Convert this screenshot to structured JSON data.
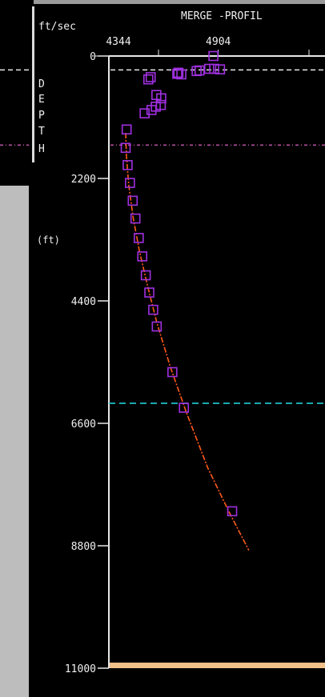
{
  "chart_data": {
    "type": "scatter",
    "title": "MERGE -PROFIL",
    "x_unit": "ft/sec",
    "xlabel_tick_values": [
      4344,
      4904
    ],
    "ylabel_letters": [
      "D",
      "E",
      "P",
      "T",
      "H"
    ],
    "ylabel_unit": "(ft)",
    "y_ticks": [
      0,
      2200,
      4400,
      6600,
      8800,
      11000
    ],
    "y_tick_labels": [
      "0",
      "2200",
      "4400",
      "6600",
      "8800",
      "11000"
    ],
    "xlim": [
      4344,
      5450
    ],
    "ylim": [
      0,
      11000
    ],
    "grid": false,
    "colors": {
      "marker": "#a030e0",
      "curve": "#ff5a1a",
      "line_white": "#e8e8e8",
      "line_pink": "#e060c0",
      "line_cyan": "#20d0d8",
      "floor": "#f2c08a"
    },
    "reference_lines": [
      {
        "depth": 250,
        "color": "white"
      },
      {
        "depth": 1600,
        "color": "pink"
      },
      {
        "depth": 6240,
        "color": "cyan"
      }
    ],
    "floor_depth": 10900,
    "series": [
      {
        "marker": "square",
        "points": [
          {
            "x": 4879,
            "y": 0
          },
          {
            "x": 4857,
            "y": 230
          },
          {
            "x": 4883,
            "y": 230
          },
          {
            "x": 4913,
            "y": 240
          },
          {
            "x": 4808,
            "y": 260
          },
          {
            "x": 4793,
            "y": 270
          },
          {
            "x": 4700,
            "y": 300
          },
          {
            "x": 4715,
            "y": 330
          },
          {
            "x": 4694,
            "y": 320
          },
          {
            "x": 4546,
            "y": 420
          },
          {
            "x": 4558,
            "y": 380
          },
          {
            "x": 4587,
            "y": 700
          },
          {
            "x": 4612,
            "y": 760
          },
          {
            "x": 4610,
            "y": 880
          },
          {
            "x": 4584,
            "y": 910
          },
          {
            "x": 4562,
            "y": 970
          },
          {
            "x": 4527,
            "y": 1030
          },
          {
            "x": 4435,
            "y": 1320
          },
          {
            "x": 4430,
            "y": 1650
          },
          {
            "x": 4440,
            "y": 1960
          },
          {
            "x": 4452,
            "y": 2280
          },
          {
            "x": 4466,
            "y": 2600
          },
          {
            "x": 4480,
            "y": 2920
          },
          {
            "x": 4497,
            "y": 3270
          },
          {
            "x": 4515,
            "y": 3600
          },
          {
            "x": 4533,
            "y": 3940
          },
          {
            "x": 4551,
            "y": 4250
          },
          {
            "x": 4571,
            "y": 4560
          },
          {
            "x": 4589,
            "y": 4860
          },
          {
            "x": 4669,
            "y": 5680
          },
          {
            "x": 4728,
            "y": 6320
          },
          {
            "x": 4975,
            "y": 8180
          }
        ]
      }
    ],
    "curve_points": [
      {
        "x": 4430,
        "y": 1380
      },
      {
        "x": 4434,
        "y": 1800
      },
      {
        "x": 4445,
        "y": 2300
      },
      {
        "x": 4468,
        "y": 2900
      },
      {
        "x": 4500,
        "y": 3500
      },
      {
        "x": 4540,
        "y": 4100
      },
      {
        "x": 4590,
        "y": 4800
      },
      {
        "x": 4660,
        "y": 5600
      },
      {
        "x": 4740,
        "y": 6400
      },
      {
        "x": 4850,
        "y": 7400
      },
      {
        "x": 4960,
        "y": 8200
      },
      {
        "x": 5060,
        "y": 8880
      }
    ]
  }
}
